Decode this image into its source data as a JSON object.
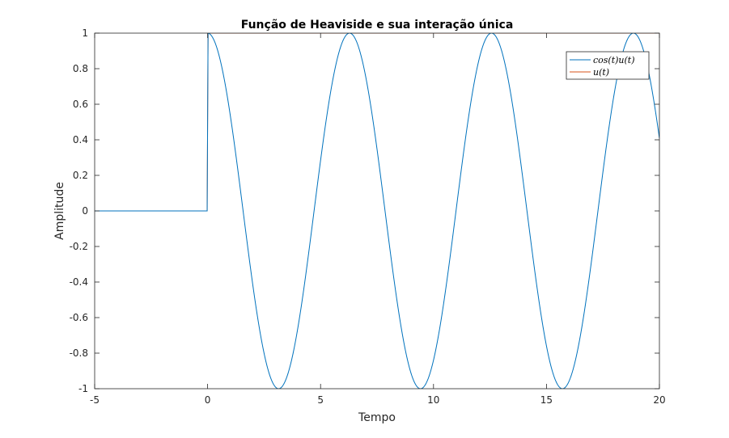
{
  "chart_data": {
    "type": "line",
    "title": "Função de Heaviside e sua interação única",
    "xlabel": "Tempo",
    "ylabel": "Amplitude",
    "xlim": [
      -5,
      20
    ],
    "ylim": [
      -1,
      1
    ],
    "xticks": [
      -5,
      0,
      5,
      10,
      15,
      20
    ],
    "yticks": [
      1,
      0.8,
      0.6,
      0.4,
      0.2,
      0,
      -0.2,
      -0.4,
      -0.6,
      -0.8,
      -1
    ],
    "ytick_labels": [
      "1",
      "0.8",
      "0.6",
      "0.4",
      "0.2",
      "0",
      "-0.2",
      "-0.4",
      "-0.6",
      "-0.8",
      "-1"
    ],
    "xtick_labels": [
      "-5",
      "0",
      "5",
      "10",
      "15",
      "20"
    ],
    "grid": false,
    "legend_position": "top-right",
    "series": [
      {
        "name": "cos(t)u(t)",
        "color": "#0072BD",
        "function": "cos(t)*u(t)",
        "x": [
          -5,
          -0.01,
          0,
          1.5708,
          3.1416,
          4.7124,
          6.2832,
          7.854,
          9.4248,
          10.9956,
          12.5664,
          14.1372,
          15.708,
          17.2788,
          18.8496,
          20
        ],
        "y": [
          0,
          0,
          1,
          0,
          -1,
          0,
          1,
          0,
          -1,
          0,
          1,
          0,
          -1,
          0,
          1,
          0.408
        ]
      },
      {
        "name": "u(t)",
        "color": "#D95319",
        "function": "u(t)",
        "x": [
          -5,
          -0.01,
          0,
          20
        ],
        "y": [
          0,
          0,
          1,
          1
        ]
      }
    ]
  }
}
